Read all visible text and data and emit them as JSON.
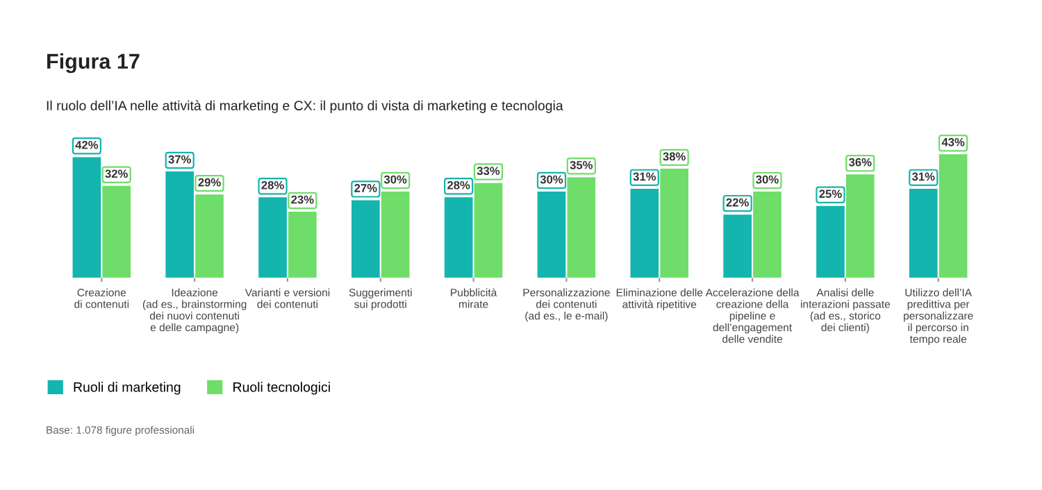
{
  "chart_data": {
    "type": "bar",
    "title": "Figura 17",
    "subtitle": "Il ruolo dell’IA nelle attività di marketing e CX: il punto di vista di marketing e tecnologia",
    "categories": [
      "Creazione\ndi contenuti",
      "Ideazione\n(ad es., brainstorming\ndei nuovi contenuti\ne delle campagne)",
      "Varianti e versioni\ndei contenuti",
      "Suggerimenti\nsui prodotti",
      "Pubblicità\nmirate",
      "Personalizzazione\ndei contenuti\n(ad es., le e-mail)",
      "Eliminazione delle\nattività ripetitive",
      "Accelerazione della\ncreazione della\npipeline e\ndell’engagement\ndelle vendite",
      "Analisi delle\ninterazioni passate\n(ad es., storico\ndei clienti)",
      "Utilizzo dell’IA\npredittiva per\npersonalizzare\nil percorso in\ntempo reale"
    ],
    "series": [
      {
        "name": "Ruoli di marketing",
        "color": "#13b5ae",
        "values": [
          42,
          37,
          28,
          27,
          28,
          30,
          31,
          22,
          25,
          31
        ],
        "value_labels": [
          "42%",
          "37%",
          "28%",
          "27%",
          "28%",
          "30%",
          "31%",
          "22%",
          "25%",
          "31%"
        ]
      },
      {
        "name": "Ruoli tecnologici",
        "color": "#6fdd69",
        "values": [
          32,
          29,
          23,
          30,
          33,
          35,
          38,
          30,
          36,
          43
        ],
        "value_labels": [
          "32%",
          "29%",
          "23%",
          "30%",
          "33%",
          "35%",
          "38%",
          "30%",
          "36%",
          "43%"
        ]
      }
    ],
    "legend": "bottom left",
    "grid": false,
    "annotations": [
      "Base: 1.078 figure professionali"
    ]
  }
}
